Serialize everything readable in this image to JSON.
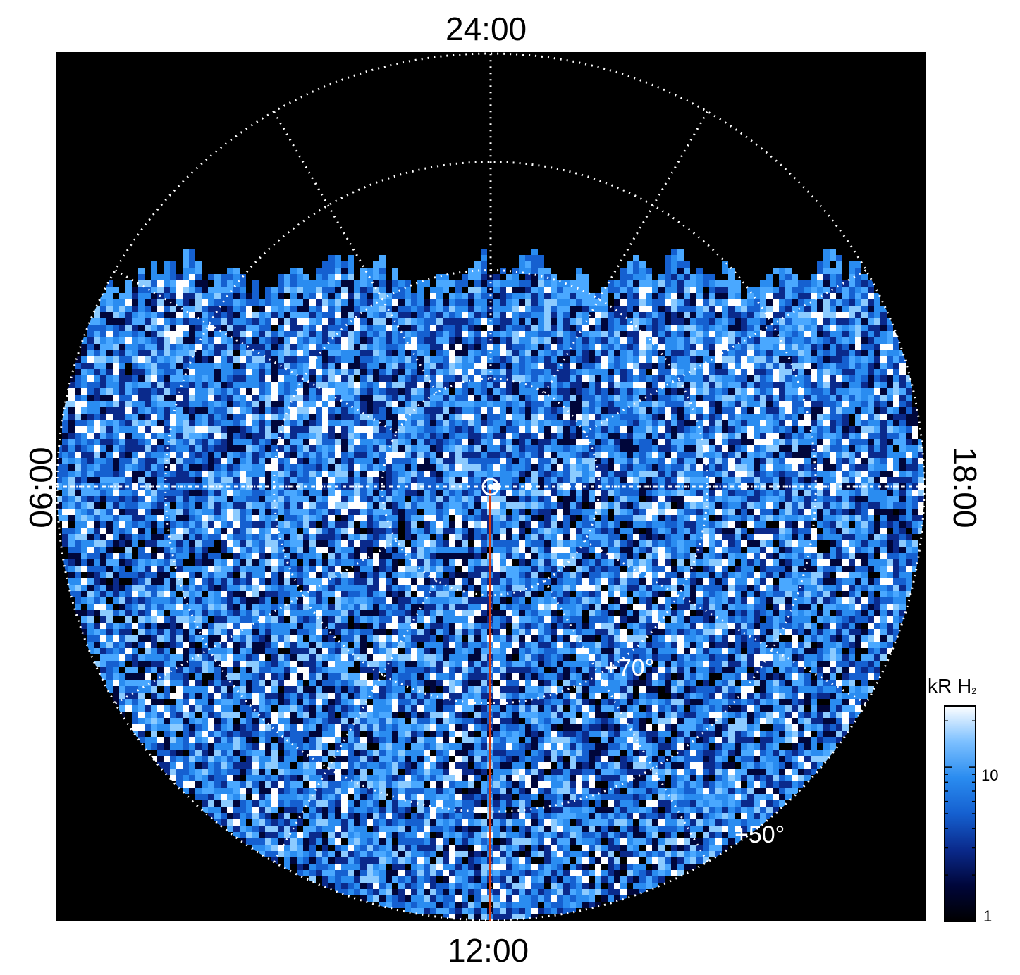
{
  "figure": {
    "local_time_labels": {
      "top": "24:00",
      "bottom": "12:00",
      "left": "06:00",
      "right": "18:00"
    },
    "latitude_labels": [
      "+70°",
      "+50°"
    ],
    "colorbar": {
      "title": "kR H",
      "title_subscript": "2",
      "scale": "log",
      "range": [
        1,
        25
      ],
      "tick_labels": [
        "10",
        "1"
      ],
      "colors": [
        "#000000",
        "#00063a",
        "#0a2a8c",
        "#1560d0",
        "#2a8cf0",
        "#7cc0ff",
        "#ffffff"
      ]
    },
    "colors": {
      "background": "#000000",
      "grid": "#ffffff",
      "meridian_line": "#d23a10"
    },
    "grid": {
      "latitude_circles": 3,
      "meridian_spokes": 12,
      "style": "dotted"
    },
    "icons": [
      "pole-marker-icon"
    ]
  }
}
